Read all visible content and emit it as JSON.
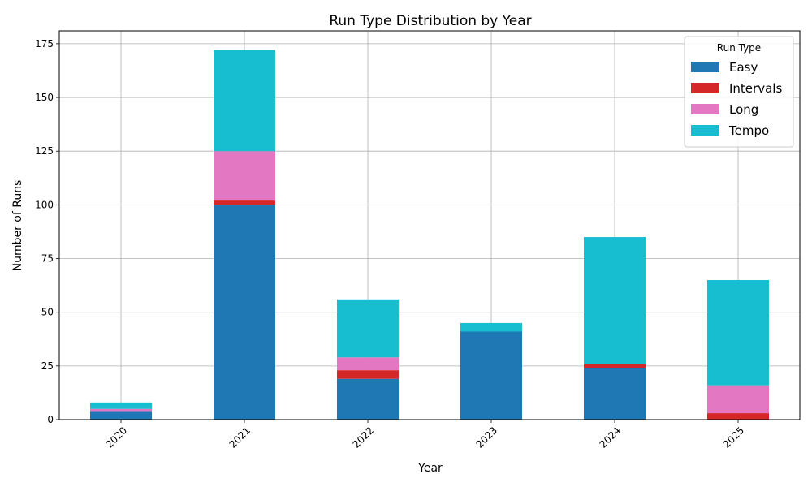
{
  "chart_data": {
    "type": "bar",
    "stacked": true,
    "title": "Run Type Distribution by Year",
    "xlabel": "Year",
    "ylabel": "Number of Runs",
    "categories": [
      "2020",
      "2021",
      "2022",
      "2023",
      "2024",
      "2025"
    ],
    "series": [
      {
        "name": "Easy",
        "color": "#1f77b4",
        "values": [
          4,
          100,
          19,
          41,
          24,
          0
        ]
      },
      {
        "name": "Intervals",
        "color": "#d62728",
        "values": [
          0,
          2,
          4,
          0,
          2,
          3
        ]
      },
      {
        "name": "Long",
        "color": "#e377c2",
        "values": [
          1,
          23,
          6,
          0,
          0,
          13
        ]
      },
      {
        "name": "Tempo",
        "color": "#17becf",
        "values": [
          3,
          47,
          27,
          4,
          59,
          49
        ]
      }
    ],
    "ylim": [
      0,
      181
    ],
    "yticks": [
      0,
      25,
      50,
      75,
      100,
      125,
      150,
      175
    ],
    "grid": true,
    "legend": {
      "title": "Run Type",
      "position": "top-right"
    }
  }
}
